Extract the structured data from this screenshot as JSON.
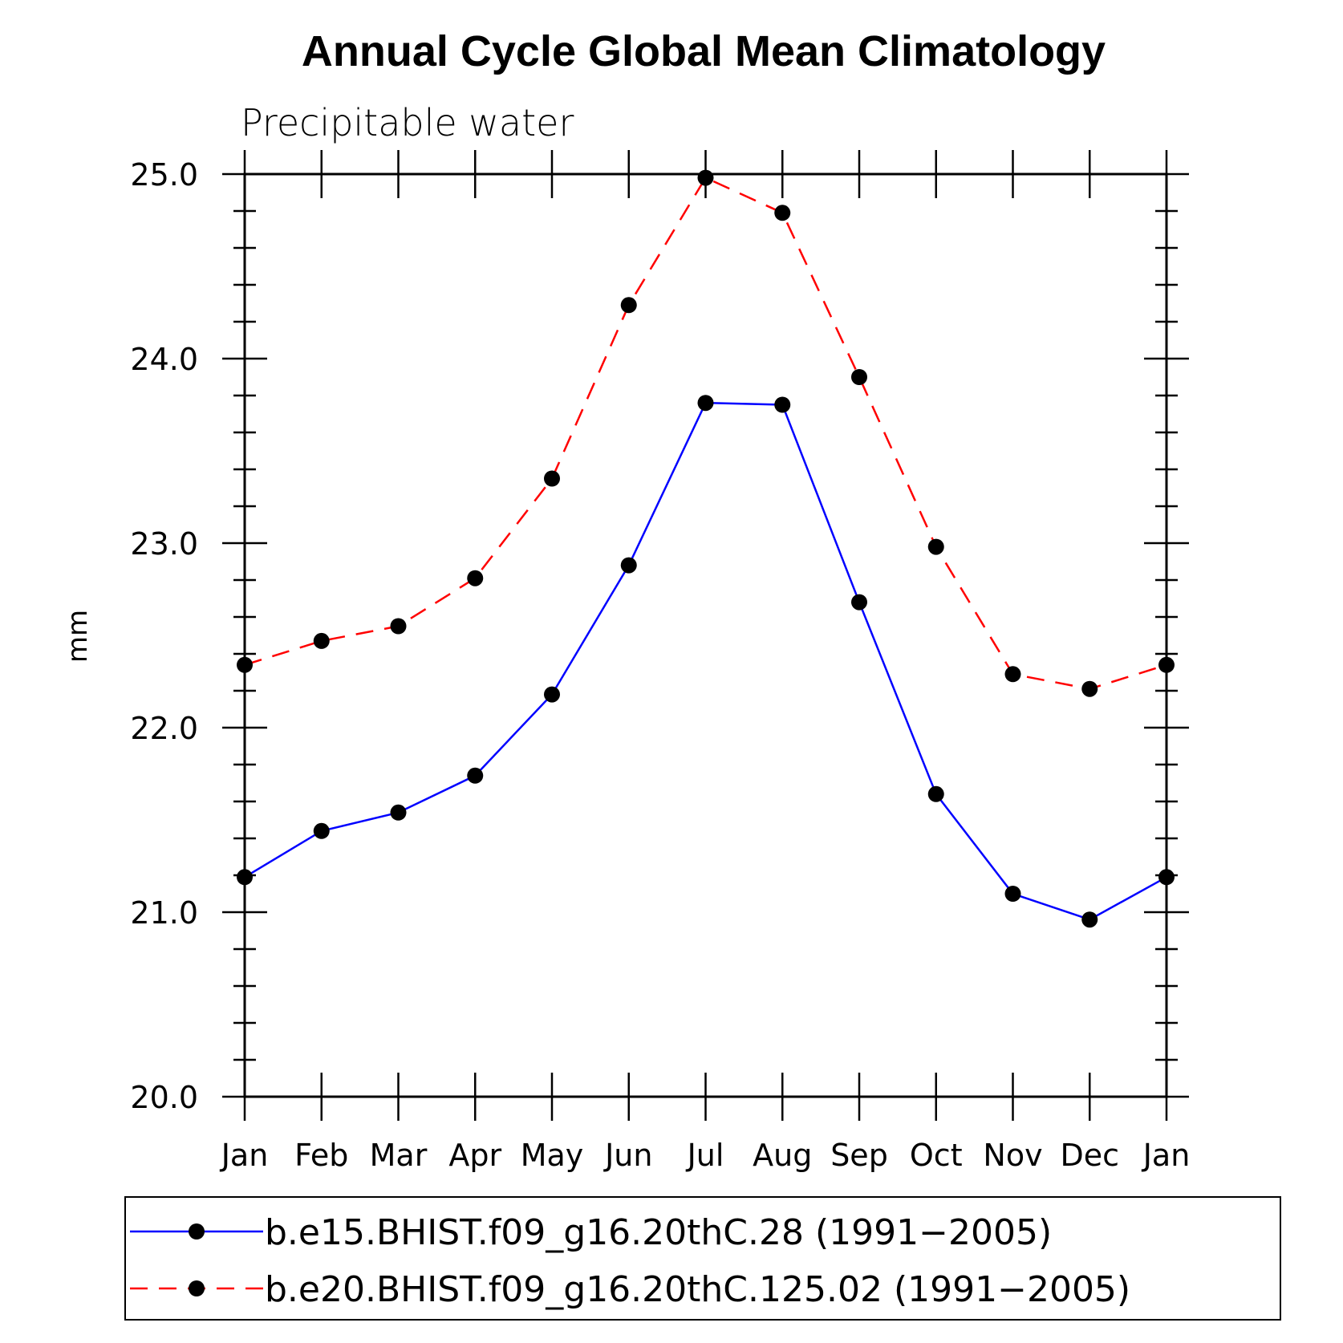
{
  "title": "Annual Cycle Global Mean Climatology",
  "subtitle": "Precipitable water",
  "chart_data": {
    "type": "line",
    "title": "Annual Cycle Global Mean Climatology",
    "subtitle": "Precipitable water",
    "xlabel": "",
    "ylabel": "mm",
    "categories": [
      "Jan",
      "Feb",
      "Mar",
      "Apr",
      "May",
      "Jun",
      "Jul",
      "Aug",
      "Sep",
      "Oct",
      "Nov",
      "Dec",
      "Jan"
    ],
    "ylim": [
      20.0,
      25.0
    ],
    "yticks": [
      "20.0",
      "21.0",
      "22.0",
      "23.0",
      "24.0",
      "25.0"
    ],
    "y_minor_step": 0.2,
    "grid": false,
    "legend_position": "bottom",
    "series": [
      {
        "name": "b.e15.BHIST.f09_g16.20thC.28 (1991−2005)",
        "color": "#0000ff",
        "dash": "solid",
        "marker": "filled-circle",
        "values": [
          21.19,
          21.44,
          21.54,
          21.74,
          22.18,
          22.88,
          23.76,
          23.75,
          22.68,
          21.64,
          21.1,
          20.96,
          21.19
        ]
      },
      {
        "name": "b.e20.BHIST.f09_g16.20thC.125.02 (1991−2005)",
        "color": "#ff0000",
        "dash": "dashed",
        "marker": "filled-circle",
        "values": [
          22.34,
          22.47,
          22.55,
          22.81,
          23.35,
          24.29,
          24.98,
          24.79,
          23.9,
          22.98,
          22.29,
          22.21,
          22.34
        ]
      }
    ]
  }
}
